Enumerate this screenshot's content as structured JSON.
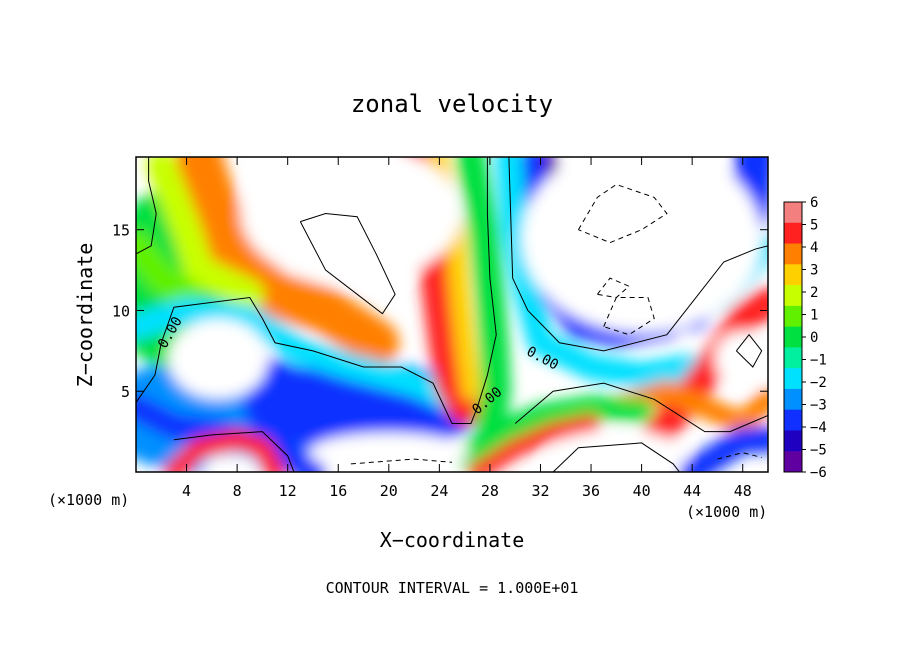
{
  "chart_data": {
    "type": "heatmap",
    "title": "zonal velocity",
    "xlabel": "X−coordinate",
    "ylabel": "Z−coordinate",
    "x_unit_left": "(×1000 m)",
    "x_unit_right": "(×1000 m)",
    "xlim": [
      0,
      50
    ],
    "ylim": [
      0,
      19.5
    ],
    "x_ticks": [
      4,
      8,
      12,
      16,
      20,
      24,
      28,
      32,
      36,
      40,
      44,
      48
    ],
    "x_tick_labels": [
      "4",
      "8",
      "12",
      "16",
      "20",
      "24",
      "28",
      "32",
      "36",
      "40",
      "44",
      "48"
    ],
    "y_ticks": [
      5,
      10,
      15
    ],
    "y_tick_labels": [
      "5",
      "10",
      "15"
    ],
    "colorbar_levels": [
      "6",
      "5",
      "4",
      "3",
      "2",
      "1",
      "0",
      "−1",
      "−2",
      "−3",
      "−4",
      "−5",
      "−6"
    ],
    "colorbar_values": [
      6,
      5,
      4,
      3,
      2,
      1,
      0,
      -1,
      -2,
      -3,
      -4,
      -5,
      -6
    ],
    "colorbar_colors": [
      "#f47f7f",
      "#ff2020",
      "#ff8000",
      "#ffd000",
      "#c8ff00",
      "#60f000",
      "#00e040",
      "#00f0a0",
      "#00e0ff",
      "#0090ff",
      "#1030ff",
      "#2000c0",
      "#6000a0"
    ],
    "contour_labels": [
      "0.00",
      "0.00",
      "0.00"
    ],
    "contour_interval_text": "CONTOUR INTERVAL =  1.000E+01",
    "grid": false
  }
}
